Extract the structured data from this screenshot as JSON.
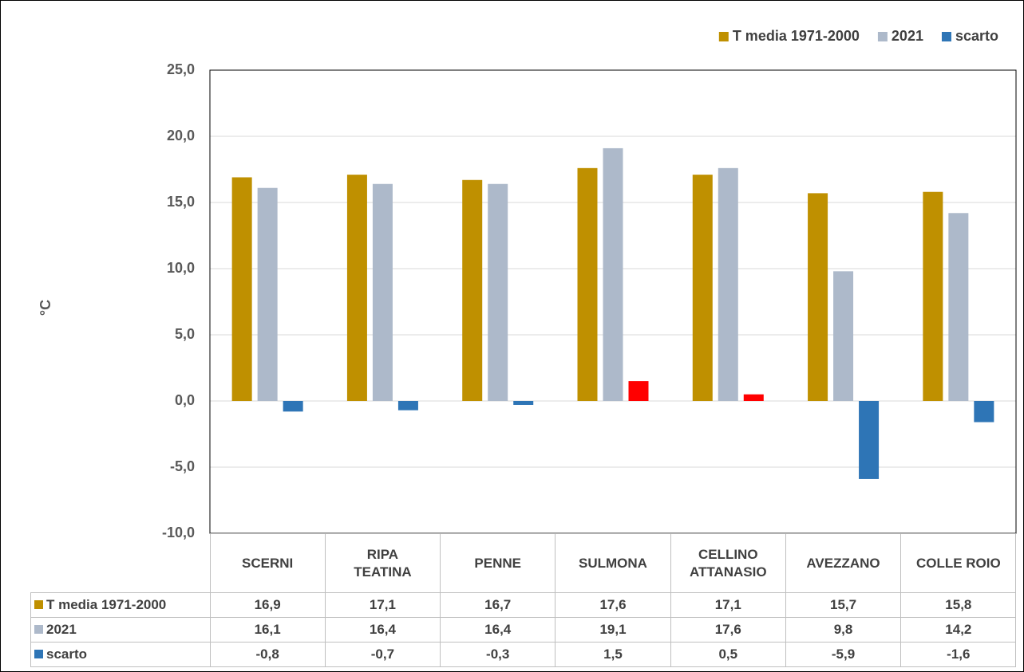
{
  "chart_data": {
    "type": "bar",
    "y_label": "°C",
    "categories": [
      "SCERNI",
      "RIPA TEATINA",
      "PENNE",
      "SULMONA",
      "CELLINO ATTANASIO",
      "AVEZZANO",
      "COLLE ROIO"
    ],
    "series": [
      {
        "name": "T media 1971-2000",
        "color": "#bf9000",
        "values": [
          16.9,
          17.1,
          16.7,
          17.6,
          17.1,
          15.7,
          15.8
        ],
        "value_labels": [
          "16,9",
          "17,1",
          "16,7",
          "17,6",
          "17,1",
          "15,7",
          "15,8"
        ]
      },
      {
        "name": "2021",
        "color": "#adb9ca",
        "values": [
          16.1,
          16.4,
          16.4,
          19.1,
          17.6,
          9.8,
          14.2
        ],
        "value_labels": [
          "16,1",
          "16,4",
          "16,4",
          "19,1",
          "17,6",
          "9,8",
          "14,2"
        ]
      },
      {
        "name": "scarto",
        "color": "#2e75b6",
        "positive_color": "#ff0000",
        "values": [
          -0.8,
          -0.7,
          -0.3,
          1.5,
          0.5,
          -5.9,
          -1.6
        ],
        "value_labels": [
          "-0,8",
          "-0,7",
          "-0,3",
          "1,5",
          "0,5",
          "-5,9",
          "-1,6"
        ]
      }
    ],
    "ylim": [
      -10,
      25
    ],
    "yticks": [
      {
        "value": -10,
        "label": "-10,0"
      },
      {
        "value": -5,
        "label": "-5,0"
      },
      {
        "value": 0,
        "label": "0,0"
      },
      {
        "value": 5,
        "label": "5,0"
      },
      {
        "value": 10,
        "label": "10,0"
      },
      {
        "value": 15,
        "label": "15,0"
      },
      {
        "value": 20,
        "label": "20,0"
      },
      {
        "value": 25,
        "label": "25,0"
      }
    ],
    "grid": true,
    "legend": "top-right",
    "data_table": true
  }
}
